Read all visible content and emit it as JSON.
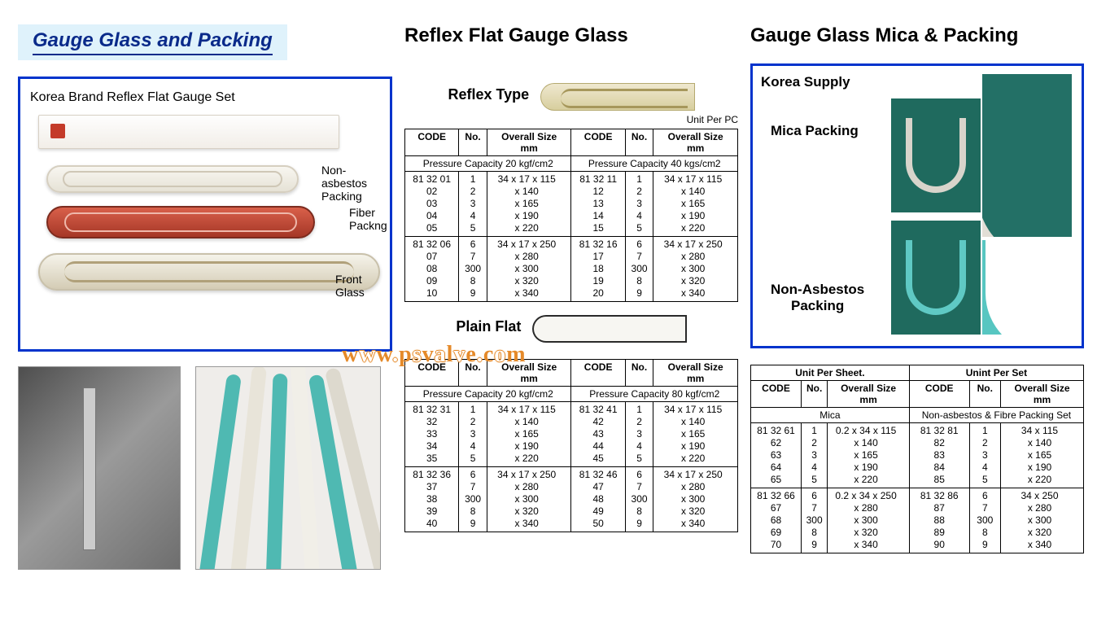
{
  "titles": {
    "main": "Gauge Glass and Packing",
    "center": "Reflex Flat Gauge Glass",
    "right": "Gauge Glass Mica & Packing"
  },
  "leftBox": {
    "caption": "Korea Brand Reflex Flat Gauge Set",
    "annot1": "Non-asbestos\nPacking",
    "annot2": "Fiber\nPackng",
    "annot3": "Front Glass"
  },
  "center": {
    "reflexLabel": "Reflex Type",
    "plainLabel": "Plain Flat",
    "unit": "Unit Per PC",
    "headers": {
      "code": "CODE",
      "no": "No.",
      "size": "Overall Size\nmm"
    },
    "reflex": {
      "cap20": "Pressure Capacity 20 kgf/cm2",
      "cap40": "Pressure Capacity 40 kgs/cm2",
      "left": {
        "g1": {
          "code": [
            "81 32 01",
            "02",
            "03",
            "04",
            "05"
          ],
          "no": [
            "1",
            "2",
            "3",
            "4",
            "5"
          ],
          "sizePrefix": "34 x 17",
          "sizes": [
            "x 115",
            "x 140",
            "x 165",
            "x 190",
            "x 220"
          ]
        },
        "g2": {
          "code": [
            "81 32 06",
            "07",
            "08",
            "09",
            "10"
          ],
          "no": [
            "6",
            "7",
            "300",
            "8",
            "9"
          ],
          "sizePrefix": "34 x 17",
          "sizes": [
            "x 250",
            "x 280",
            "x 300",
            "x 320",
            "x 340"
          ]
        }
      },
      "right": {
        "g1": {
          "code": [
            "81 32 11",
            "12",
            "13",
            "14",
            "15"
          ],
          "no": [
            "1",
            "2",
            "3",
            "4",
            "5"
          ],
          "sizePrefix": "34 x 17",
          "sizes": [
            "x 115",
            "x 140",
            "x 165",
            "x 190",
            "x 220"
          ]
        },
        "g2": {
          "code": [
            "81 32 16",
            "17",
            "18",
            "19",
            "20"
          ],
          "no": [
            "6",
            "7",
            "300",
            "8",
            "9"
          ],
          "sizePrefix": "34 x 17",
          "sizes": [
            "x 250",
            "x 280",
            "x 300",
            "x 320",
            "x 340"
          ]
        }
      }
    },
    "plain": {
      "cap20": "Pressure Capacity 20 kgf/cm2",
      "cap80": "Pressure Capacity 80 kgf/cm2",
      "left": {
        "g1": {
          "code": [
            "81 32 31",
            "32",
            "33",
            "34",
            "35"
          ],
          "no": [
            "1",
            "2",
            "3",
            "4",
            "5"
          ],
          "sizePrefix": "34 x 17",
          "sizes": [
            "x 115",
            "x 140",
            "x 165",
            "x 190",
            "x 220"
          ]
        },
        "g2": {
          "code": [
            "81 32 36",
            "37",
            "38",
            "39",
            "40"
          ],
          "no": [
            "6",
            "7",
            "300",
            "8",
            "9"
          ],
          "sizePrefix": "34 x 17",
          "sizes": [
            "x 250",
            "x 280",
            "x 300",
            "x 320",
            "x 340"
          ]
        }
      },
      "right": {
        "g1": {
          "code": [
            "81 32 41",
            "42",
            "43",
            "44",
            "45"
          ],
          "no": [
            "1",
            "2",
            "3",
            "4",
            "5"
          ],
          "sizePrefix": "34 x 17",
          "sizes": [
            "x 115",
            "x 140",
            "x 165",
            "x 190",
            "x 220"
          ]
        },
        "g2": {
          "code": [
            "81 32 46",
            "47",
            "48",
            "49",
            "50"
          ],
          "no": [
            "6",
            "7",
            "300",
            "8",
            "9"
          ],
          "sizePrefix": "34 x 17",
          "sizes": [
            "x 250",
            "x 280",
            "x 300",
            "x 320",
            "x 340"
          ]
        }
      }
    }
  },
  "rightBox": {
    "ks": "Korea Supply",
    "mica": "Mica Packing",
    "na": "Non-Asbestos\nPacking"
  },
  "rightTable": {
    "unitSheet": "Unit Per Sheet.",
    "unitSet": "Unint Per Set",
    "headers": {
      "code": "CODE",
      "no": "No.",
      "size": "Overall Size\nmm"
    },
    "micaLabel": "Mica",
    "setLabel": "Non-asbestos & Fibre Packing Set",
    "left": {
      "g1": {
        "code": [
          "81 32 61",
          "62",
          "63",
          "64",
          "65"
        ],
        "no": [
          "1",
          "2",
          "3",
          "4",
          "5"
        ],
        "sizePrefix": "0.2 x 34",
        "sizes": [
          "x 115",
          "x 140",
          "x 165",
          "x 190",
          "x 220"
        ]
      },
      "g2": {
        "code": [
          "81 32 66",
          "67",
          "68",
          "69",
          "70"
        ],
        "no": [
          "6",
          "7",
          "300",
          "8",
          "9"
        ],
        "sizePrefix": "0.2 x 34",
        "sizes": [
          "x 250",
          "x 280",
          "x 300",
          "x 320",
          "x 340"
        ]
      }
    },
    "right": {
      "g1": {
        "code": [
          "81 32 81",
          "82",
          "83",
          "84",
          "85"
        ],
        "no": [
          "1",
          "2",
          "3",
          "4",
          "5"
        ],
        "sizePrefix": "34",
        "sizes": [
          "x 115",
          "x 140",
          "x 165",
          "x 190",
          "x 220"
        ]
      },
      "g2": {
        "code": [
          "81 32 86",
          "87",
          "88",
          "89",
          "90"
        ],
        "no": [
          "6",
          "7",
          "300",
          "8",
          "9"
        ],
        "sizePrefix": "34",
        "sizes": [
          "x 250",
          "x 280",
          "x 300",
          "x 320",
          "x 340"
        ]
      }
    }
  },
  "watermark": "www.psvalve.com"
}
